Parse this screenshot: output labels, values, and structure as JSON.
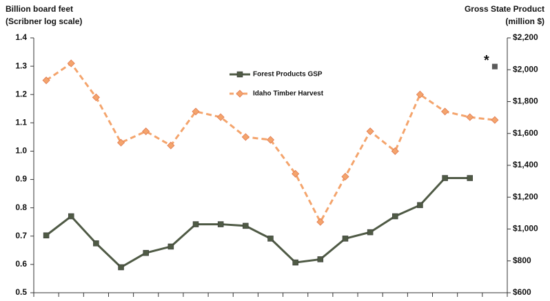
{
  "chart_data": {
    "type": "line",
    "left_axis_title": [
      "Billion board feet",
      "(Scribner log scale)"
    ],
    "right_axis_title": [
      "Gross State Product",
      "(million $)"
    ],
    "categories": [
      null,
      null,
      null,
      null,
      null,
      null,
      null,
      null,
      null,
      null,
      null,
      null,
      null,
      null,
      null,
      null,
      null,
      null,
      null
    ],
    "series": [
      {
        "name": "Forest Products GSP",
        "color": "#4f5a45",
        "axis": "y2",
        "marker": "square",
        "values": [
          960,
          1080,
          910,
          760,
          850,
          890,
          1030,
          1030,
          1020,
          940,
          790,
          810,
          940,
          980,
          1080,
          1150,
          1320,
          1320,
          null
        ]
      },
      {
        "name": "Idaho Timber Harvest",
        "color": "#f4a46c",
        "axis": "y",
        "marker": "diamond",
        "dashed": true,
        "values": [
          1.25,
          1.31,
          1.19,
          1.03,
          1.07,
          1.02,
          1.14,
          1.12,
          1.05,
          1.04,
          0.92,
          0.75,
          0.91,
          1.07,
          1.0,
          1.2,
          1.14,
          1.12,
          1.11
        ]
      }
    ],
    "estimate_marker": {
      "text": "*",
      "color": "#5a5a5a",
      "values": [
        null,
        null,
        null,
        null,
        null,
        null,
        null,
        null,
        null,
        null,
        null,
        null,
        null,
        null,
        null,
        null,
        null,
        null,
        2020
      ]
    },
    "ylim": [
      0.5,
      1.4
    ],
    "yticks": [
      0.5,
      0.6,
      0.7,
      0.8,
      0.9,
      {
        "value": 1,
        "label": "1.0"
      },
      1.1,
      1.2,
      1.3,
      1.4
    ],
    "y2lim": [
      600,
      2200
    ],
    "y2ticks": [
      {
        "value": 600,
        "label": "$600"
      },
      {
        "value": 800,
        "label": "$800"
      },
      {
        "value": 1000,
        "label": "$1,000"
      },
      {
        "value": 1200,
        "label": "$1,200"
      },
      {
        "value": 1400,
        "label": "$1,400"
      },
      {
        "value": 1600,
        "label": "$1,600"
      },
      {
        "value": 1800,
        "label": "$1,800"
      },
      {
        "value": 2000,
        "label": "$2,000"
      },
      {
        "value": 2200,
        "label": "$2,200"
      }
    ],
    "grid": false
  }
}
